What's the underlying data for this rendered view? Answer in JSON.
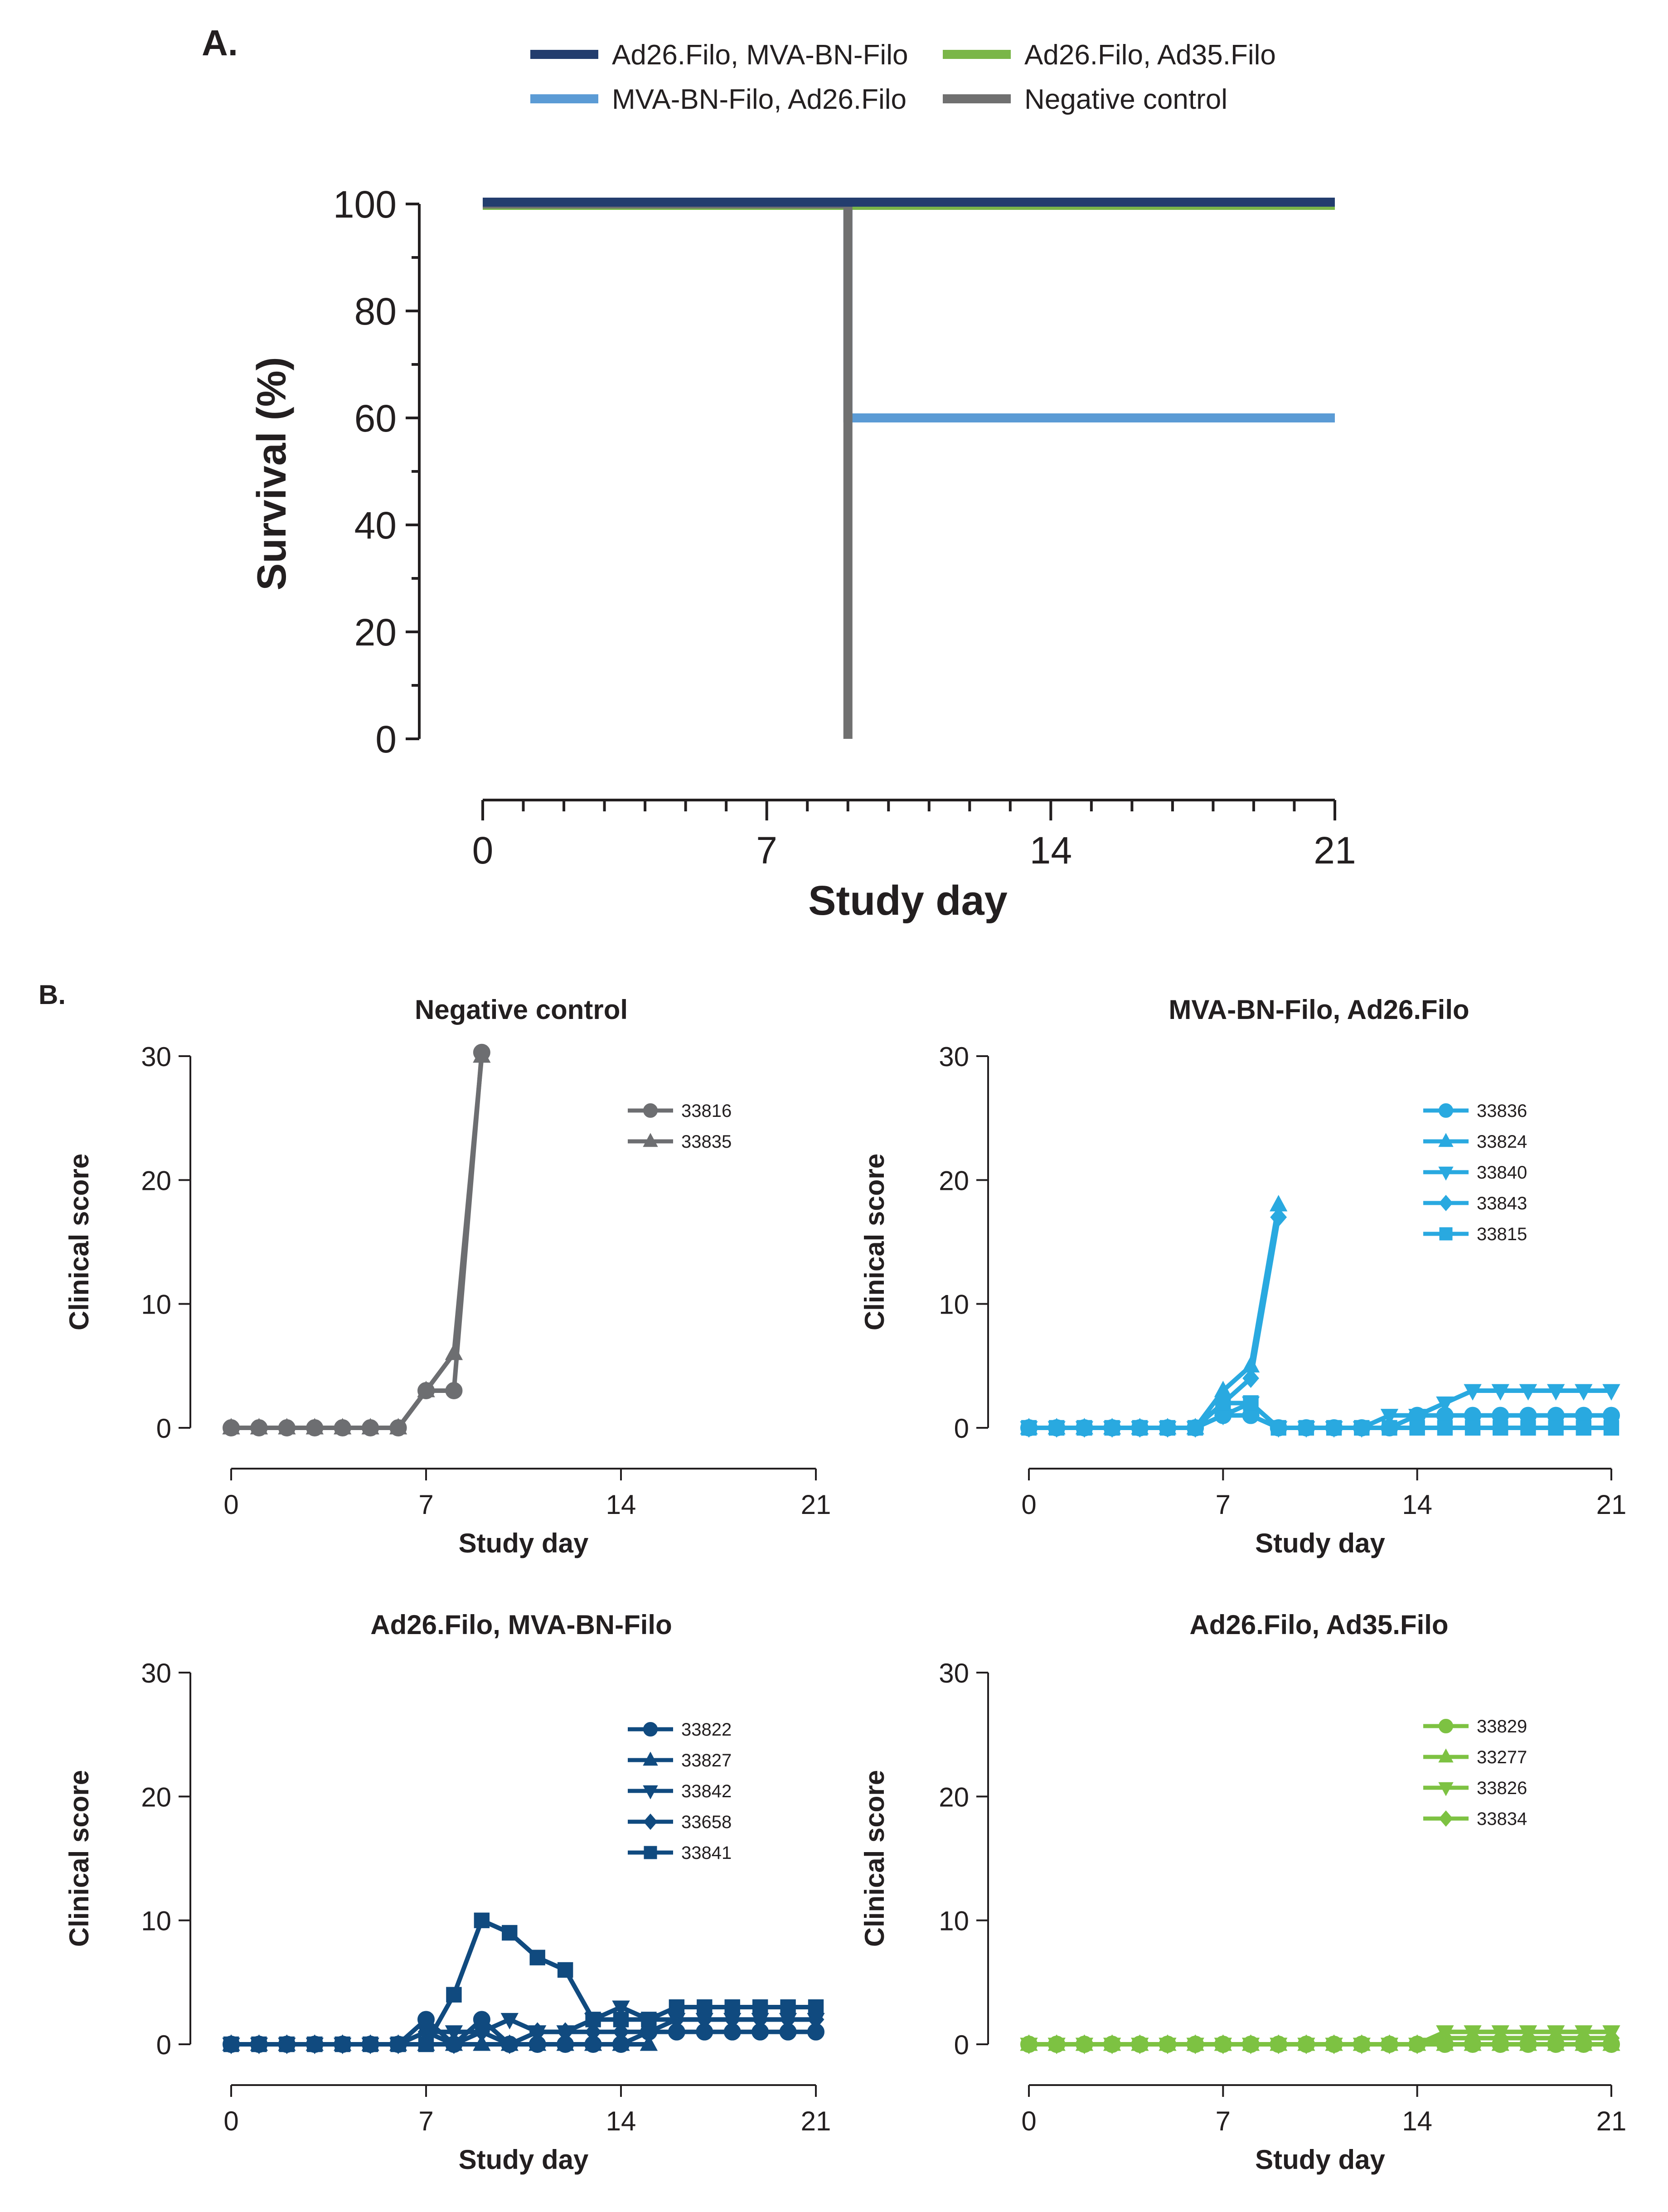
{
  "panel_labels": {
    "a": "A.",
    "b": "B."
  },
  "colors": {
    "dark_navy": "#233d6e",
    "light_blue": "#5b9bd5",
    "green": "#7ab648",
    "gray": "#707070",
    "gray_b": "#6d6e71",
    "cyan": "#29a9e0",
    "navy_b": "#104a7f",
    "green_b": "#7dc242"
  },
  "chart_data": [
    {
      "id": "survival",
      "type": "line",
      "title": "",
      "xlabel": "Study day",
      "ylabel": "Survival (%)",
      "xlim": [
        0,
        21
      ],
      "ylim": [
        0,
        100
      ],
      "xticks": [
        0,
        7,
        14,
        21
      ],
      "yticks": [
        0,
        20,
        40,
        60,
        80,
        100
      ],
      "legend": [
        {
          "name": "Ad26.Filo, MVA-BN-Filo",
          "color": "#233d6e"
        },
        {
          "name": "Ad26.Filo, Ad35.Filo",
          "color": "#7ab648"
        },
        {
          "name": "MVA-BN-Filo, Ad26.Filo",
          "color": "#5b9bd5"
        },
        {
          "name": "Negative control",
          "color": "#707070"
        }
      ],
      "series": [
        {
          "name": "Ad26.Filo, MVA-BN-Filo",
          "color": "#233d6e",
          "step": [
            [
              0,
              100
            ],
            [
              21,
              100
            ]
          ]
        },
        {
          "name": "Ad26.Filo, Ad35.Filo",
          "color": "#7ab648",
          "step": [
            [
              0,
              100
            ],
            [
              21,
              100
            ]
          ]
        },
        {
          "name": "MVA-BN-Filo, Ad26.Filo",
          "color": "#5b9bd5",
          "step": [
            [
              0,
              100
            ],
            [
              9,
              100
            ],
            [
              9,
              60
            ],
            [
              21,
              60
            ]
          ]
        },
        {
          "name": "Negative control",
          "color": "#707070",
          "step": [
            [
              0,
              100
            ],
            [
              9,
              100
            ],
            [
              9,
              0
            ]
          ]
        }
      ]
    },
    {
      "id": "neg",
      "type": "line",
      "title": "Negative control",
      "xlabel": "Study day",
      "ylabel": "Clinical score",
      "xlim": [
        0,
        21
      ],
      "ylim": [
        0,
        30
      ],
      "xticks": [
        0,
        7,
        14,
        21
      ],
      "yticks": [
        0,
        10,
        20,
        30
      ],
      "color": "#6d6e71",
      "legend_position": "top-right",
      "series": [
        {
          "name": "33816",
          "marker": "circle",
          "x": [
            0,
            1,
            2,
            3,
            4,
            5,
            6,
            7,
            8,
            9
          ],
          "y": [
            0,
            0,
            0,
            0,
            0,
            0,
            0,
            3,
            3,
            30.3
          ]
        },
        {
          "name": "33835",
          "marker": "triangle-up",
          "x": [
            0,
            1,
            2,
            3,
            4,
            5,
            6,
            7,
            8,
            9
          ],
          "y": [
            0,
            0,
            0,
            0,
            0,
            0,
            0,
            3,
            6,
            30
          ]
        }
      ]
    },
    {
      "id": "mva",
      "type": "line",
      "title": "MVA-BN-Filo, Ad26.Filo",
      "xlabel": "Study day",
      "ylabel": "Clinical score",
      "xlim": [
        0,
        21
      ],
      "ylim": [
        0,
        30
      ],
      "xticks": [
        0,
        7,
        14,
        21
      ],
      "yticks": [
        0,
        10,
        20,
        30
      ],
      "color": "#29a9e0",
      "legend_position": "top-right",
      "series": [
        {
          "name": "33836",
          "marker": "circle",
          "x": [
            0,
            1,
            2,
            3,
            4,
            5,
            6,
            7,
            8,
            9,
            10,
            11,
            12,
            13,
            14,
            15,
            16,
            17,
            18,
            19,
            20,
            21
          ],
          "y": [
            0,
            0,
            0,
            0,
            0,
            0,
            0,
            1,
            1,
            0,
            0,
            0,
            0,
            0,
            1,
            1,
            1,
            1,
            1,
            1,
            1,
            1
          ]
        },
        {
          "name": "33824",
          "marker": "triangle-up",
          "x": [
            0,
            1,
            2,
            3,
            4,
            5,
            6,
            7,
            8,
            9
          ],
          "y": [
            0,
            0,
            0,
            0,
            0,
            0,
            0,
            3,
            5,
            18
          ]
        },
        {
          "name": "33840",
          "marker": "triangle-down",
          "x": [
            0,
            1,
            2,
            3,
            4,
            5,
            6,
            7,
            8,
            9,
            10,
            11,
            12,
            13,
            14,
            15,
            16,
            17,
            18,
            19,
            20,
            21
          ],
          "y": [
            0,
            0,
            0,
            0,
            0,
            0,
            0,
            1,
            2,
            0,
            0,
            0,
            0,
            1,
            1,
            2,
            3,
            3,
            3,
            3,
            3,
            3
          ]
        },
        {
          "name": "33843",
          "marker": "diamond",
          "x": [
            0,
            1,
            2,
            3,
            4,
            5,
            6,
            7,
            8,
            9
          ],
          "y": [
            0,
            0,
            0,
            0,
            0,
            0,
            0,
            2,
            4,
            17
          ]
        },
        {
          "name": "33815",
          "marker": "square",
          "x": [
            0,
            1,
            2,
            3,
            4,
            5,
            6,
            7,
            8,
            9,
            10,
            11,
            12,
            13,
            14,
            15,
            16,
            17,
            18,
            19,
            20,
            21
          ],
          "y": [
            0,
            0,
            0,
            0,
            0,
            0,
            0,
            2,
            2,
            0,
            0,
            0,
            0,
            0,
            0,
            0,
            0,
            0,
            0,
            0,
            0,
            0
          ]
        }
      ]
    },
    {
      "id": "ad26mva",
      "type": "line",
      "title": "Ad26.Filo, MVA-BN-Filo",
      "xlabel": "Study day",
      "ylabel": "Clinical score",
      "xlim": [
        0,
        21
      ],
      "ylim": [
        0,
        30
      ],
      "xticks": [
        0,
        7,
        14,
        21
      ],
      "yticks": [
        0,
        10,
        20,
        30
      ],
      "color": "#104a7f",
      "legend_position": "top-right",
      "series": [
        {
          "name": "33822",
          "marker": "circle",
          "x": [
            0,
            1,
            2,
            3,
            4,
            5,
            6,
            7,
            8,
            9,
            10,
            11,
            12,
            13,
            14,
            15,
            16,
            17,
            18,
            19,
            20,
            21
          ],
          "y": [
            0,
            0,
            0,
            0,
            0,
            0,
            0,
            2,
            0,
            2,
            0,
            0,
            0,
            0,
            0,
            1,
            1,
            1,
            1,
            1,
            1,
            1
          ]
        },
        {
          "name": "33827",
          "marker": "triangle-up",
          "x": [
            0,
            1,
            2,
            3,
            4,
            5,
            6,
            7,
            8,
            9,
            10,
            11,
            12,
            13,
            14,
            15
          ],
          "y": [
            0,
            0,
            0,
            0,
            0,
            0,
            0,
            0,
            0,
            0,
            0,
            0,
            0,
            0,
            0,
            0
          ]
        },
        {
          "name": "33842",
          "marker": "triangle-down",
          "x": [
            0,
            1,
            2,
            3,
            4,
            5,
            6,
            7,
            8,
            9,
            10,
            11,
            12,
            13,
            14,
            15,
            16,
            17,
            18,
            19,
            20,
            21
          ],
          "y": [
            0,
            0,
            0,
            0,
            0,
            0,
            0,
            1,
            1,
            1,
            2,
            1,
            1,
            2,
            3,
            2,
            2,
            2,
            2,
            2,
            2,
            2
          ]
        },
        {
          "name": "33658",
          "marker": "diamond",
          "x": [
            0,
            1,
            2,
            3,
            4,
            5,
            6,
            7,
            8,
            9,
            10,
            11,
            12,
            13,
            14,
            15,
            16,
            17,
            18,
            19,
            20,
            21
          ],
          "y": [
            0,
            0,
            0,
            0,
            0,
            0,
            0,
            1,
            0,
            1,
            0,
            1,
            1,
            1,
            1,
            1,
            2,
            2,
            2,
            2,
            2,
            2
          ]
        },
        {
          "name": "33841",
          "marker": "square",
          "x": [
            0,
            1,
            2,
            3,
            4,
            5,
            6,
            7,
            8,
            9,
            10,
            11,
            12,
            13,
            14,
            15,
            16,
            17,
            18,
            19,
            20,
            21
          ],
          "y": [
            0,
            0,
            0,
            0,
            0,
            0,
            0,
            0,
            4,
            10,
            9,
            7,
            6,
            2,
            2,
            2,
            3,
            3,
            3,
            3,
            3,
            3
          ]
        }
      ]
    },
    {
      "id": "ad26ad35",
      "type": "line",
      "title": "Ad26.Filo, Ad35.Filo",
      "xlabel": "Study day",
      "ylabel": "Clinical score",
      "xlim": [
        0,
        21
      ],
      "ylim": [
        0,
        30
      ],
      "xticks": [
        0,
        7,
        14,
        21
      ],
      "yticks": [
        0,
        10,
        20,
        30
      ],
      "color": "#7dc242",
      "legend_position": "top-right",
      "series": [
        {
          "name": "33829",
          "marker": "circle",
          "x": [
            0,
            1,
            2,
            3,
            4,
            5,
            6,
            7,
            8,
            9,
            10,
            11,
            12,
            13,
            14,
            15,
            16,
            17,
            18,
            19,
            20,
            21
          ],
          "y": [
            0,
            0,
            0,
            0,
            0,
            0,
            0,
            0,
            0,
            0,
            0,
            0,
            0,
            0,
            0,
            0,
            0,
            0,
            0,
            0,
            0,
            0
          ]
        },
        {
          "name": "33277",
          "marker": "triangle-up",
          "x": [
            0,
            1,
            2,
            3,
            4,
            5,
            6,
            7,
            8,
            9,
            10,
            11,
            12,
            13,
            14,
            15,
            16,
            17,
            18,
            19,
            20,
            21
          ],
          "y": [
            0,
            0,
            0,
            0,
            0,
            0,
            0,
            0,
            0,
            0,
            0,
            0,
            0,
            0,
            0,
            0,
            0,
            0,
            0,
            0,
            0,
            0
          ]
        },
        {
          "name": "33826",
          "marker": "triangle-down",
          "x": [
            0,
            1,
            2,
            3,
            4,
            5,
            6,
            7,
            8,
            9,
            10,
            11,
            12,
            13,
            14,
            15,
            16,
            17,
            18,
            19,
            20,
            21
          ],
          "y": [
            0,
            0,
            0,
            0,
            0,
            0,
            0,
            0,
            0,
            0,
            0,
            0,
            0,
            0,
            0,
            1,
            1,
            1,
            1,
            1,
            1,
            1
          ]
        },
        {
          "name": "33834",
          "marker": "diamond",
          "x": [
            0,
            1,
            2,
            3,
            4,
            5,
            6,
            7,
            8,
            9,
            10,
            11,
            12,
            13,
            14,
            15,
            16,
            17,
            18,
            19,
            20,
            21
          ],
          "y": [
            0,
            0,
            0,
            0,
            0,
            0,
            0,
            0,
            0,
            0,
            0,
            0,
            0,
            0,
            0,
            0.5,
            0.5,
            0.5,
            0.5,
            0.5,
            0.5,
            0.5
          ]
        }
      ]
    }
  ]
}
